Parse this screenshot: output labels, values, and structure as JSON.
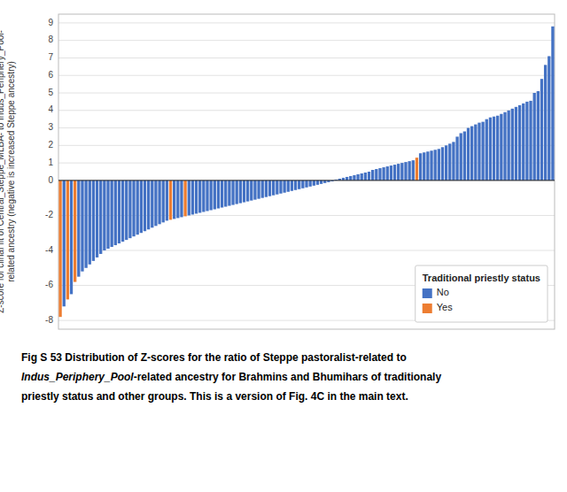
{
  "chart_data": {
    "type": "bar",
    "y_label": "Z-score for clinal fit of Central_Steppe_MLBA- to Indus_Periphery_Pool- related ancestry (negative is increased Steppe ancestry)",
    "legend_title": "Traditional priestly status",
    "annotations": [
      "Fig S 53 Distribution of Z-scores for the ratio of Steppe pastoralist-related to",
      "Indus_Periphery_Pool",
      "-related ancestry for Brahmins and Bhumihars of traditionaly",
      "priestly status and other groups. This is a version of Fig. 4C in the main text."
    ],
    "ylim": [
      -8.5,
      9.5
    ],
    "yticks": [
      -8,
      -6,
      -4,
      -2,
      0,
      1,
      2,
      3,
      4,
      5,
      6,
      7,
      8,
      9
    ],
    "grid": true,
    "legend": "lower right",
    "tick_labels": "y",
    "series": [
      {
        "name": "No",
        "color": "#4472C4",
        "values": [
          null,
          -7.2,
          null,
          -6.5,
          null,
          -5.5,
          -5.2,
          -5.0,
          -4.8,
          -4.6,
          -4.4,
          -4.2,
          -4.0,
          -3.9,
          -3.8,
          -3.7,
          -3.6,
          -3.5,
          -3.4,
          -3.3,
          -3.2,
          -3.1,
          -3.0,
          -2.9,
          -2.8,
          -2.7,
          -2.6,
          -2.5,
          -2.4,
          -2.3,
          null,
          -2.2,
          -2.15,
          -2.1,
          null,
          -2.0,
          -1.95,
          -1.9,
          -1.85,
          -1.8,
          -1.75,
          -1.7,
          -1.65,
          -1.6,
          -1.55,
          -1.5,
          -1.45,
          -1.4,
          -1.35,
          -1.3,
          -1.25,
          -1.2,
          -1.15,
          -1.1,
          -1.05,
          -1.0,
          -0.95,
          -0.9,
          -0.85,
          -0.8,
          -0.75,
          -0.7,
          -0.65,
          -0.6,
          -0.55,
          -0.5,
          -0.45,
          -0.4,
          -0.35,
          -0.3,
          -0.25,
          -0.2,
          -0.15,
          -0.1,
          -0.05,
          0.05,
          0.1,
          0.15,
          0.2,
          0.25,
          0.3,
          0.35,
          0.4,
          0.45,
          0.5,
          0.6,
          0.65,
          0.7,
          0.75,
          0.8,
          0.85,
          0.9,
          0.95,
          1.0,
          1.05,
          1.1,
          1.15,
          null,
          1.55,
          1.6,
          1.65,
          1.7,
          1.75,
          1.8,
          1.9,
          2.0,
          2.1,
          2.2,
          2.5,
          2.7,
          2.8,
          3.0,
          3.1,
          3.2,
          3.3,
          3.35,
          3.5,
          3.6,
          3.65,
          3.7,
          3.8,
          3.9,
          4.0,
          4.1,
          4.2,
          4.3,
          4.4,
          4.5,
          4.55,
          5.0,
          5.1,
          5.8,
          6.6,
          7.1,
          8.8
        ]
      },
      {
        "name": "Yes",
        "color": "#ED7D31",
        "values": [
          -7.8,
          null,
          -6.8,
          null,
          -5.8,
          null,
          null,
          null,
          null,
          null,
          null,
          null,
          null,
          null,
          null,
          null,
          null,
          null,
          null,
          null,
          null,
          null,
          null,
          null,
          null,
          null,
          null,
          null,
          null,
          null,
          -2.25,
          null,
          null,
          null,
          -2.05,
          null,
          null,
          null,
          null,
          null,
          null,
          null,
          null,
          null,
          null,
          null,
          null,
          null,
          null,
          null,
          null,
          null,
          null,
          null,
          null,
          null,
          null,
          null,
          null,
          null,
          null,
          null,
          null,
          null,
          null,
          null,
          null,
          null,
          null,
          null,
          null,
          null,
          null,
          null,
          null,
          null,
          null,
          null,
          null,
          null,
          null,
          null,
          null,
          null,
          null,
          null,
          null,
          null,
          null,
          null,
          null,
          null,
          null,
          null,
          null,
          null,
          null,
          1.3,
          null,
          null,
          null,
          null,
          null,
          null,
          null,
          null,
          null,
          null,
          null,
          null,
          null,
          null,
          null,
          null,
          null,
          null,
          null,
          null,
          null,
          null,
          null,
          null,
          null,
          null,
          null,
          null,
          null,
          null,
          null,
          null,
          null,
          null,
          null,
          null,
          null
        ]
      }
    ]
  }
}
